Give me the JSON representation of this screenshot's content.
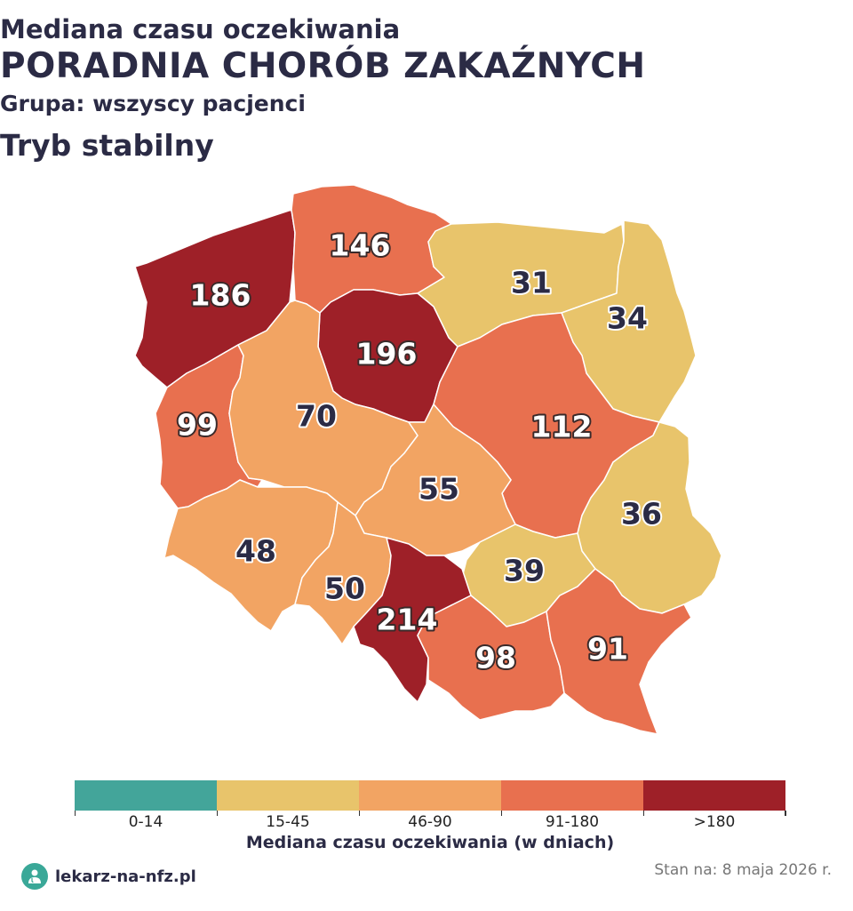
{
  "title": {
    "line1": "Mediana czasu oczekiwania",
    "line2": "PORADNIA CHORÓB ZAKAŹNYCH",
    "line3": "Grupa: wszyscy pacjenci",
    "line4": "Tryb stabilny"
  },
  "colors": {
    "bin_0_14": "#43a59a",
    "bin_15_45": "#e8c46b",
    "bin_46_90": "#f2a463",
    "bin_91_180": "#e8704f",
    "bin_180_plus": "#9e2028",
    "label_dark": "#2b2b45",
    "label_light": "#ffffff"
  },
  "regions": [
    {
      "value": "186",
      "bin": "bin_180_plus"
    },
    {
      "value": "146",
      "bin": "bin_91_180"
    },
    {
      "value": "31",
      "bin": "bin_15_45"
    },
    {
      "value": "34",
      "bin": "bin_15_45"
    },
    {
      "value": "196",
      "bin": "bin_180_plus"
    },
    {
      "value": "99",
      "bin": "bin_91_180"
    },
    {
      "value": "70",
      "bin": "bin_46_90"
    },
    {
      "value": "112",
      "bin": "bin_91_180"
    },
    {
      "value": "55",
      "bin": "bin_46_90"
    },
    {
      "value": "36",
      "bin": "bin_15_45"
    },
    {
      "value": "48",
      "bin": "bin_46_90"
    },
    {
      "value": "50",
      "bin": "bin_46_90"
    },
    {
      "value": "39",
      "bin": "bin_15_45"
    },
    {
      "value": "214",
      "bin": "bin_180_plus"
    },
    {
      "value": "98",
      "bin": "bin_91_180"
    },
    {
      "value": "91",
      "bin": "bin_91_180"
    }
  ],
  "legend": {
    "items": [
      {
        "label": "0-14",
        "bin": "bin_0_14"
      },
      {
        "label": "15-45",
        "bin": "bin_15_45"
      },
      {
        "label": "46-90",
        "bin": "bin_46_90"
      },
      {
        "label": "91-180",
        "bin": "bin_91_180"
      },
      {
        "label": ">180",
        "bin": "bin_180_plus"
      }
    ],
    "title": "Mediana czasu oczekiwania (w dniach)"
  },
  "footer": {
    "brand": "lekarz-na-nfz.pl",
    "brand_icon": "doctor-icon",
    "date": "Stan na: 8 maja 2026 r."
  }
}
